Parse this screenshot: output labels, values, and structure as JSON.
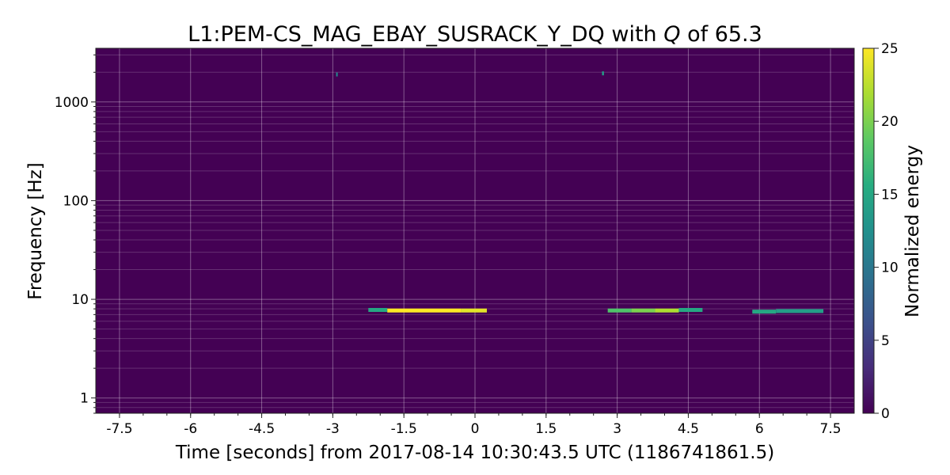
{
  "chart_data": {
    "type": "heatmap",
    "title": "L1:PEM-CS_MAG_EBAY_SUSRACK_Y_DQ with Q of 65.3",
    "title_parts": {
      "prefix": "L1:PEM-CS_MAG_EBAY_SUSRACK_Y_DQ with ",
      "q_symbol": "Q",
      "suffix": " of 65.3"
    },
    "xlabel": "Time [seconds] from 2017-08-14 10:30:43.5 UTC (1186741861.5)",
    "ylabel": "Frequency [Hz]",
    "colorbar_label": "Normalized energy",
    "xlim": [
      -8,
      8
    ],
    "ylim": [
      0.7,
      3500
    ],
    "y_scale": "log",
    "grid": true,
    "x_ticks": [
      -7.5,
      -6,
      -4.5,
      -3,
      -1.5,
      0,
      1.5,
      3,
      4.5,
      6,
      7.5
    ],
    "x_tick_labels": [
      "-7.5",
      "-6",
      "-4.5",
      "-3",
      "-1.5",
      "0",
      "1.5",
      "3",
      "4.5",
      "6",
      "7.5"
    ],
    "y_ticks": [
      1,
      10,
      100,
      1000
    ],
    "y_tick_labels": [
      "1",
      "10",
      "100",
      "1000"
    ],
    "colorbar_range": [
      0,
      25
    ],
    "colorbar_ticks": [
      0,
      5,
      10,
      15,
      20,
      25
    ],
    "colorbar_tick_labels": [
      "0",
      "5",
      "10",
      "15",
      "20",
      "25"
    ],
    "colormap": [
      "#440154",
      "#472c7a",
      "#3b518b",
      "#2c718e",
      "#21908d",
      "#27ad81",
      "#5cc863",
      "#aadc32",
      "#fde725"
    ],
    "background_energy": 0,
    "tiles": [
      {
        "t0": -2.25,
        "t1": -1.85,
        "f": 7.8,
        "energy": 15
      },
      {
        "t0": -1.85,
        "t1": -0.3,
        "f": 7.7,
        "energy": 25
      },
      {
        "t0": -0.3,
        "t1": 0.25,
        "f": 7.7,
        "energy": 24
      },
      {
        "t0": 2.8,
        "t1": 3.3,
        "f": 7.7,
        "energy": 18
      },
      {
        "t0": 3.3,
        "t1": 3.8,
        "f": 7.7,
        "energy": 20
      },
      {
        "t0": 3.8,
        "t1": 4.3,
        "f": 7.7,
        "energy": 22
      },
      {
        "t0": 4.3,
        "t1": 4.8,
        "f": 7.8,
        "energy": 15
      },
      {
        "t0": 5.85,
        "t1": 6.35,
        "f": 7.5,
        "energy": 15
      },
      {
        "t0": 6.35,
        "t1": 7.35,
        "f": 7.6,
        "energy": 14
      },
      {
        "t0": -2.93,
        "t1": -2.9,
        "f": 1900,
        "energy": 12
      },
      {
        "t0": 2.68,
        "t1": 2.72,
        "f": 1950,
        "energy": 14
      }
    ]
  }
}
